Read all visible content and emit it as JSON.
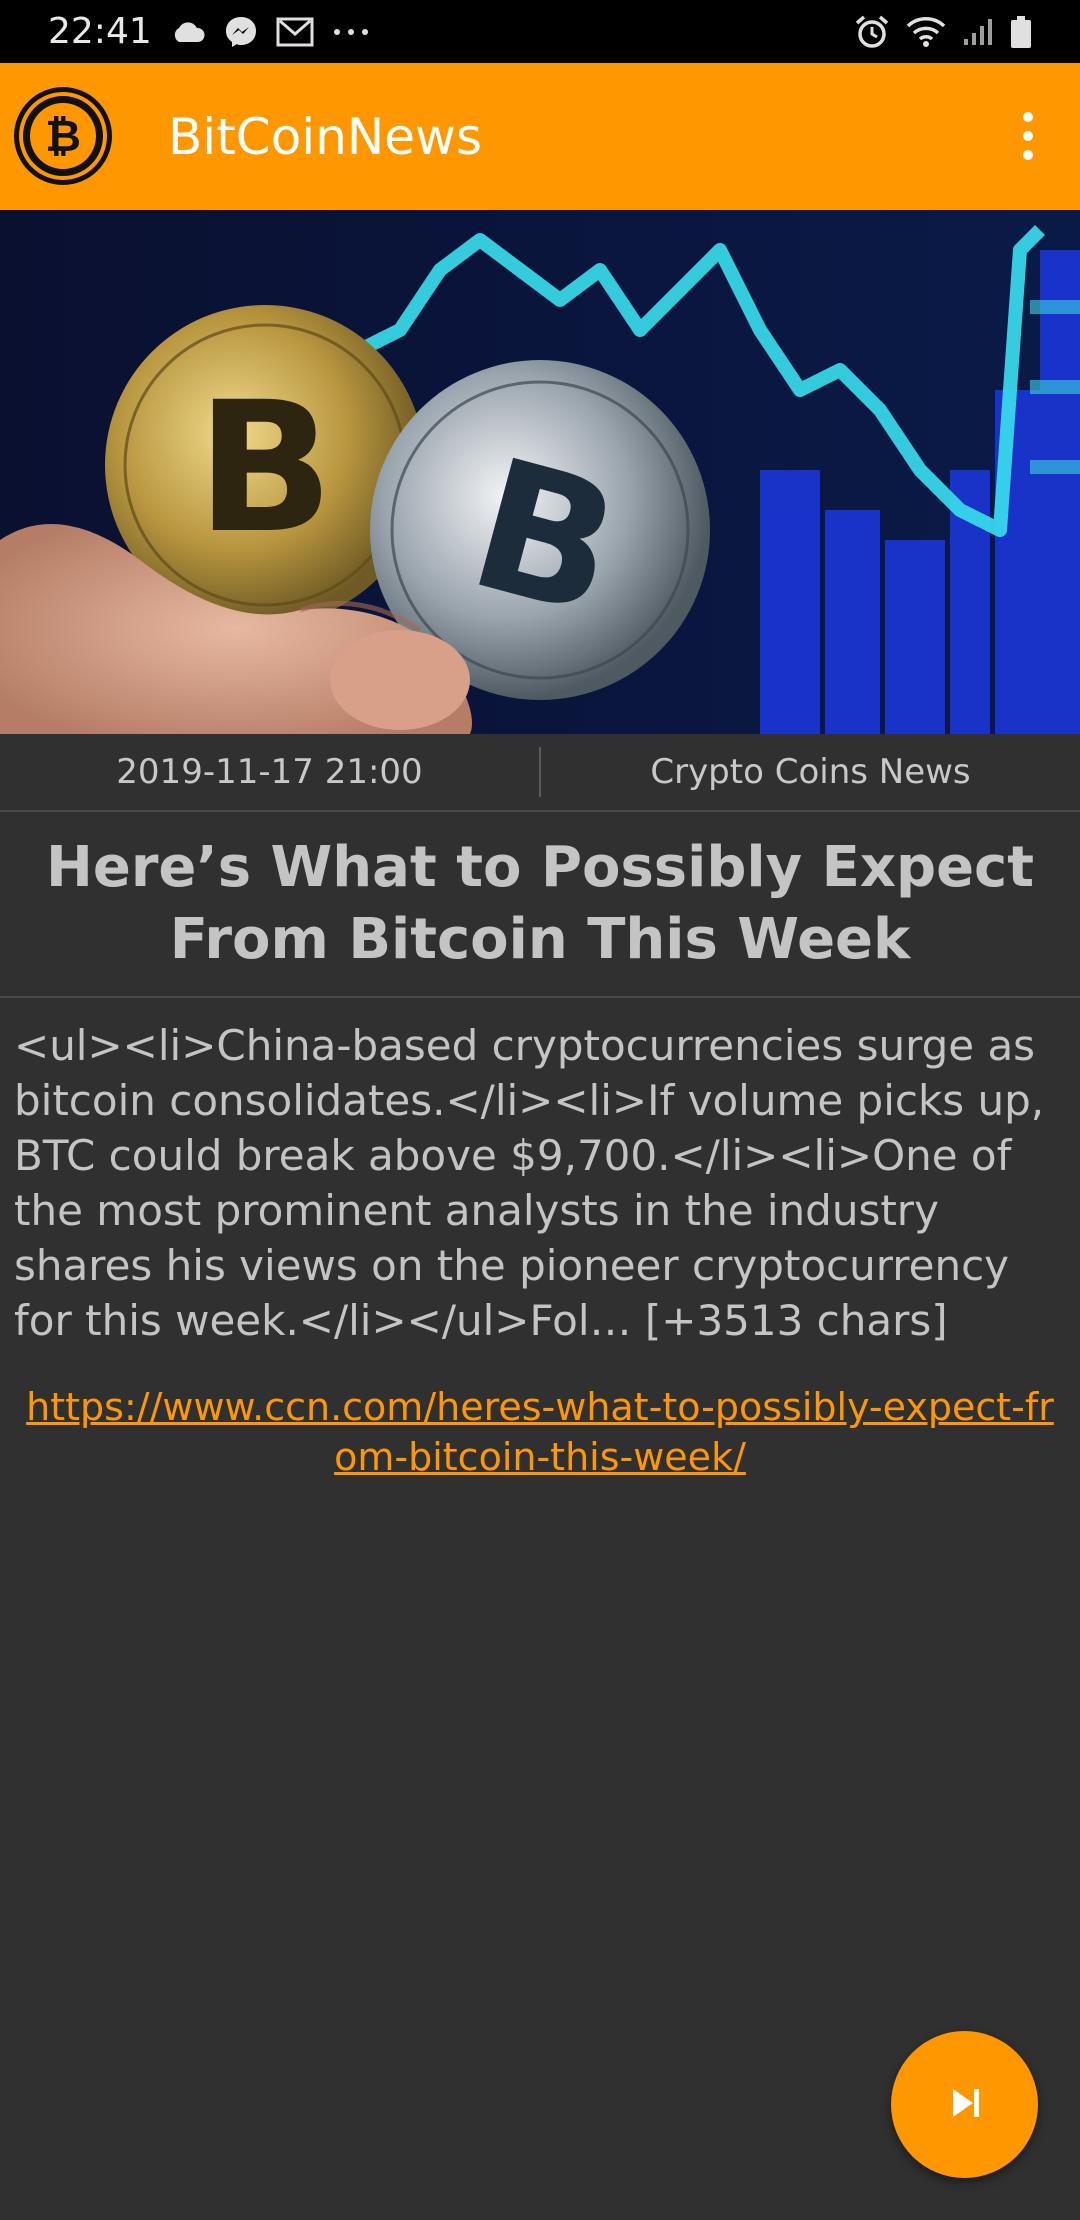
{
  "status_bar": {
    "time": "22:41",
    "left_icons": [
      "cloud-icon",
      "messenger-icon",
      "gmail-icon",
      "more-dots-icon"
    ],
    "right_icons": [
      "alarm-icon",
      "wifi-icon",
      "signal-icon",
      "battery-icon"
    ]
  },
  "app_bar": {
    "title": "BitCoinNews",
    "logo_icon": "bitcoin-logo-icon",
    "menu_icon": "overflow-menu-icon",
    "accent_color": "#ff9800"
  },
  "article": {
    "date": "2019-11-17 21:00",
    "source": "Crypto Coins News",
    "title": "Here’s What to Possibly Expect From Bitcoin This Week",
    "body": "<ul><li>China-based cryptocurrencies surge as bitcoin consolidates.</li><li>If volume picks up, BTC could break above $9,700.</li><li>One of the most prominent analysts in the industry shares his views on the pioneer cryptocurrency for this week.</li></ul>Fol… [+3513 chars]",
    "url": "https://www.ccn.com/heres-what-to-possibly-expect-from-bitcoin-this-week/"
  },
  "fab": {
    "icon": "skip-next-icon"
  }
}
